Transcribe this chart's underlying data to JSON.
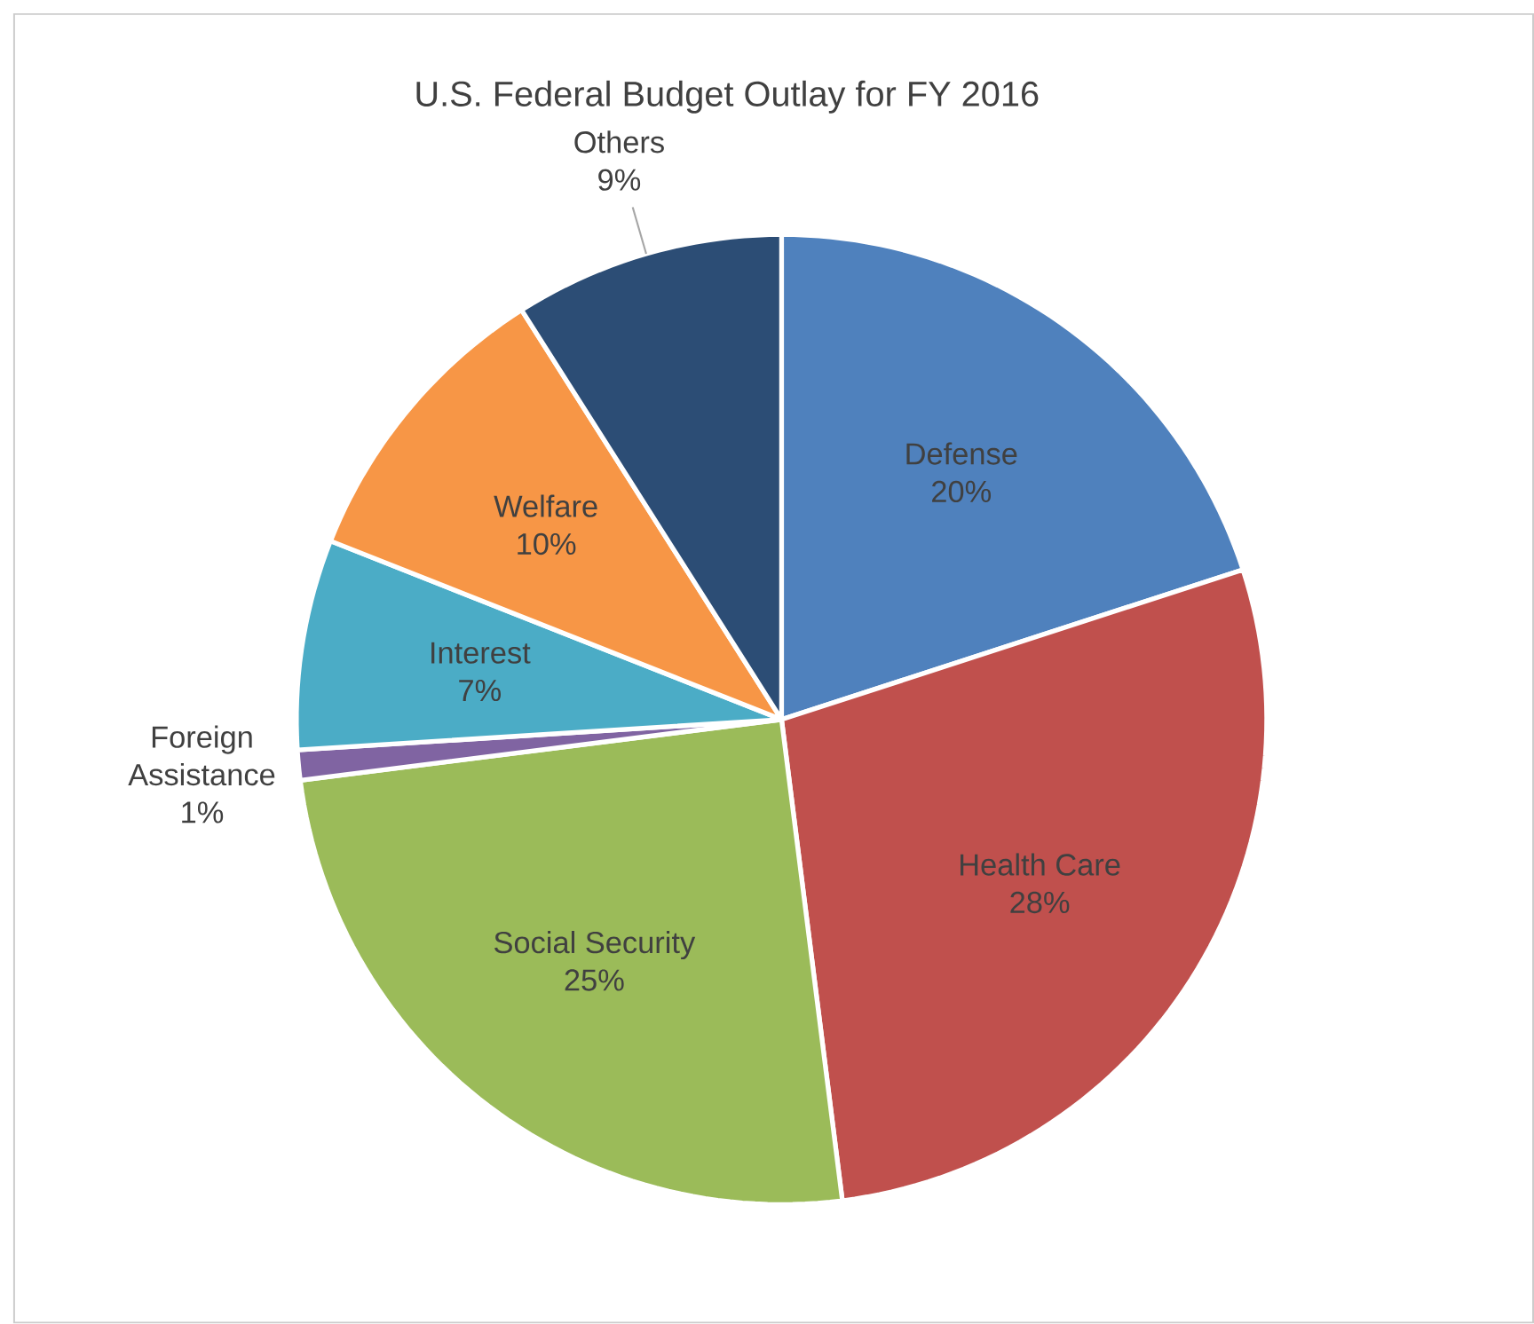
{
  "chart_data": {
    "type": "pie",
    "title": "U.S. Federal Budget Outlay for FY 2016",
    "categories": [
      "Defense",
      "Health Care",
      "Social Security",
      "Foreign Assistance",
      "Interest",
      "Welfare",
      "Others"
    ],
    "values": [
      20,
      28,
      25,
      1,
      7,
      10,
      9
    ],
    "value_labels": [
      "20%",
      "28%",
      "25%",
      "1%",
      "7%",
      "10%",
      "9%"
    ],
    "colors": [
      "#4f81bd",
      "#c0504d",
      "#9bbb59",
      "#8064a2",
      "#4bacc6",
      "#f79646",
      "#2c4d75"
    ]
  }
}
